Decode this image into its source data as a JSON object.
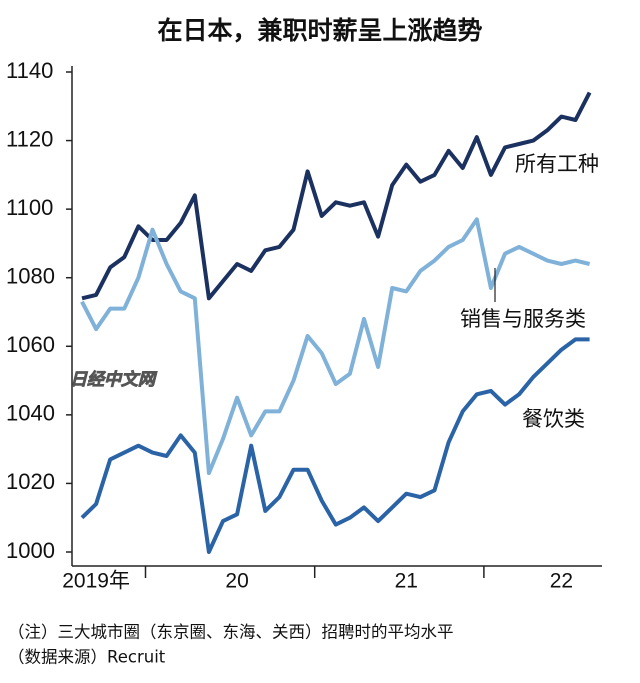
{
  "chart_data": {
    "type": "line",
    "title": "在日本，兼职时薪呈上涨趋势",
    "categories": [
      null,
      "2019年",
      null,
      null,
      null,
      null,
      null,
      null,
      null,
      null,
      null,
      "20",
      null,
      null,
      null,
      null,
      null,
      null,
      null,
      null,
      null,
      null,
      null,
      "21",
      null,
      null,
      null,
      null,
      null,
      null,
      null,
      null,
      null,
      null,
      "22",
      null,
      null
    ],
    "ylim": [
      1000,
      1140
    ],
    "yticks": [
      1000,
      1020,
      1040,
      1060,
      1080,
      1100,
      1120,
      1140
    ],
    "grid": false,
    "series": [
      {
        "name": "所有工种",
        "color": "#1b3160",
        "values": [
          1074,
          1075,
          1083,
          1086,
          1095,
          1091,
          1091,
          1096,
          1104,
          1074,
          1079,
          1084,
          1082,
          1088,
          1089,
          1094,
          1111,
          1098,
          1102,
          1101,
          1102,
          1092,
          1107,
          1113,
          1108,
          1110,
          1117,
          1112,
          1121,
          1110,
          1118,
          1119,
          1120,
          1123,
          1127,
          1126,
          1134
        ]
      },
      {
        "name": "销售与服务类",
        "color": "#7fb1d9",
        "values": [
          1073,
          1065,
          1071,
          1071,
          1080,
          1094,
          1084,
          1076,
          1074,
          1023,
          1033,
          1045,
          1034,
          1041,
          1041,
          1050,
          1063,
          1058,
          1049,
          1052,
          1068,
          1054,
          1077,
          1076,
          1082,
          1085,
          1089,
          1091,
          1097,
          1077,
          1087,
          1089,
          1087,
          1085,
          1084,
          1085,
          1084
        ]
      },
      {
        "name": "餐饮类",
        "color": "#2a63a6",
        "values": [
          1010,
          1014,
          1027,
          1029,
          1031,
          1029,
          1028,
          1034,
          1029,
          1000,
          1009,
          1011,
          1031,
          1012,
          1016,
          1024,
          1024,
          1015,
          1008,
          1010,
          1013,
          1009,
          1013,
          1017,
          1016,
          1018,
          1032,
          1041,
          1046,
          1047,
          1043,
          1046,
          1051,
          1055,
          1059,
          1062,
          1062
        ]
      }
    ],
    "notes": [
      "（注）三大城市圈（东京圈、东海、关西）招聘时的平均水平",
      "（数据来源）Recruit"
    ],
    "watermark": "日经中文网"
  }
}
